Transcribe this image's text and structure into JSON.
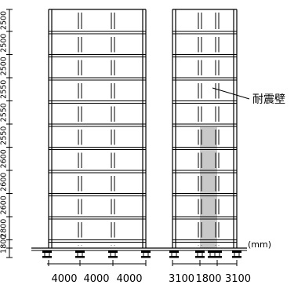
{
  "diagram": {
    "story_heights": [
      "2500",
      "2500",
      "2500",
      "2550",
      "2550",
      "2550",
      "2600",
      "2600",
      "2600",
      "2800",
      "1800"
    ],
    "left_frame_spans": [
      "4000",
      "4000",
      "4000"
    ],
    "right_frame_spans": [
      "3100",
      "1800",
      "3100"
    ],
    "shear_wall_label": "耐震壁",
    "unit_label": "(mm)",
    "colors": {
      "line": "#000000",
      "wall_fill": "#c8c8c8"
    }
  }
}
